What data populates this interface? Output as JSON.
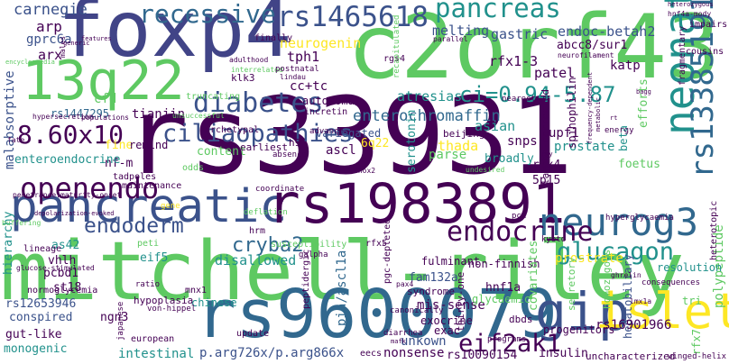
{
  "palette": {
    "dark_purple": "#440154",
    "indigo": "#3b528b",
    "teal": "#21918c",
    "green": "#5ec962",
    "yellow": "#fde725",
    "light_green": "#addc30"
  },
  "words": [
    {
      "id": "rs33931",
      "text": "rs33931",
      "color": "#440154"
    },
    {
      "id": "mitchell_riley",
      "text": "mitchell-riley",
      "color": "#5ec962"
    },
    {
      "id": "foxp4",
      "text": "foxp4",
      "color": "#414487"
    },
    {
      "id": "c2orf43",
      "text": "c2orf43",
      "color": "#5ec962"
    },
    {
      "id": "rs9600079",
      "text": "rs9600079",
      "color": "#31688e"
    },
    {
      "id": "pancreatic",
      "text": "pancreatic",
      "color": "#3b528b"
    },
    {
      "id": "rs1983891",
      "text": "rs1983891",
      "color": "#440154"
    },
    {
      "id": "q13q22",
      "text": "13q22",
      "color": "#5ec962"
    },
    {
      "id": "gip",
      "text": "gip",
      "color": "#3b528b"
    },
    {
      "id": "islets",
      "text": "islets",
      "color": "#fde725"
    },
    {
      "id": "neonatal",
      "text": "neonatal",
      "color": "#21918c"
    },
    {
      "id": "neurog3",
      "text": "neurog3",
      "color": "#31688e"
    },
    {
      "id": "diabetes",
      "text": "diabetes",
      "color": "#3b528b"
    },
    {
      "id": "rs1465618",
      "text": "rs1465618",
      "color": "#3b528b"
    },
    {
      "id": "recessive",
      "text": "recessive",
      "color": "#31688e"
    },
    {
      "id": "pancreas",
      "text": "pancreas",
      "color": "#21918c"
    },
    {
      "id": "openendo",
      "text": "openendo",
      "color": "#440154"
    },
    {
      "id": "n860x10",
      "text": "8.60x10",
      "color": "#440154"
    },
    {
      "id": "ciliaopathies",
      "text": "ciliaopathies",
      "color": "#3b528b"
    },
    {
      "id": "ci",
      "text": "ci=0.94-5.87",
      "color": "#21918c"
    },
    {
      "id": "rs13385191",
      "text": "rs13385191",
      "color": "#31688e"
    },
    {
      "id": "endoderm",
      "text": "endoderm",
      "color": "#3b528b"
    },
    {
      "id": "endocrine",
      "text": "endocrine",
      "color": "#440154"
    },
    {
      "id": "glucagon",
      "text": "glucagon",
      "color": "#21918c"
    },
    {
      "id": "cryba2",
      "text": "cryba2",
      "color": "#31688e"
    },
    {
      "id": "eif2ak1",
      "text": "eif2ak1",
      "color": "#440154"
    },
    {
      "id": "carnegie",
      "text": "carnegie",
      "color": "#3b528b"
    },
    {
      "id": "arp",
      "text": "arp",
      "color": "#440154"
    },
    {
      "id": "gprc6a",
      "text": "gprc6a",
      "color": "#3b528b"
    },
    {
      "id": "arx",
      "text": "arx",
      "color": "#440154"
    },
    {
      "id": "neurogenin",
      "text": "neurogenin",
      "color": "#fde725"
    },
    {
      "id": "tph1",
      "text": "tph1",
      "color": "#440154"
    },
    {
      "id": "melting",
      "text": "melting",
      "color": "#3b528b"
    },
    {
      "id": "gastric",
      "text": "gastric",
      "color": "#3b528b"
    },
    {
      "id": "endoc_betah2",
      "text": "endoc-betah2",
      "color": "#3b528b"
    },
    {
      "id": "abcc8",
      "text": "abcc8/sur1",
      "color": "#440154"
    },
    {
      "id": "rfx1_3",
      "text": "rfx1-3",
      "color": "#440154"
    },
    {
      "id": "patel",
      "text": "patel",
      "color": "#440154"
    },
    {
      "id": "katp",
      "text": "katp",
      "color": "#440154"
    },
    {
      "id": "cctc",
      "text": "cc+tc",
      "color": "#440154"
    },
    {
      "id": "klk3",
      "text": "klk3",
      "color": "#440154"
    },
    {
      "id": "enterochromaffin",
      "text": "enterochromaffin",
      "color": "#31688e"
    },
    {
      "id": "atresias",
      "text": "atresias",
      "color": "#21918c"
    },
    {
      "id": "tianjin",
      "text": "tianjin",
      "color": "#440154"
    },
    {
      "id": "cfd",
      "text": "cfd",
      "color": "#5ec962"
    },
    {
      "id": "rs1447295",
      "text": "rs1447295",
      "color": "#31688e"
    },
    {
      "id": "malabsorptive",
      "text": "malabsorptive",
      "color": "#3b528b"
    },
    {
      "id": "autosomal",
      "text": "autosomal",
      "color": "#440154"
    },
    {
      "id": "beijing",
      "text": "beijing",
      "color": "#440154"
    },
    {
      "id": "asian",
      "text": "asian",
      "color": "#21918c"
    },
    {
      "id": "thada",
      "text": "thada",
      "color": "#fde725"
    },
    {
      "id": "snps",
      "text": "snps",
      "color": "#440154"
    },
    {
      "id": "upf1",
      "text": "upf1",
      "color": "#440154"
    },
    {
      "id": "prostate",
      "text": "prostate",
      "color": "#21918c"
    },
    {
      "id": "spinophilin",
      "text": "spinophilin",
      "color": "#440154"
    },
    {
      "id": "serotonin",
      "text": "serotonin",
      "color": "#21918c"
    },
    {
      "id": "variegated",
      "text": "variegated",
      "color": "#3b528b"
    },
    {
      "id": "fine",
      "text": "fine",
      "color": "#fde725"
    },
    {
      "id": "remind",
      "text": "remind",
      "color": "#440154"
    },
    {
      "id": "nf_m",
      "text": "nf-m",
      "color": "#440154"
    },
    {
      "id": "content",
      "text": "content",
      "color": "#5ec962"
    },
    {
      "id": "earliest",
      "text": "earliest",
      "color": "#440154"
    },
    {
      "id": "h9",
      "text": "h9",
      "color": "#440154"
    },
    {
      "id": "ascl",
      "text": "ascl",
      "color": "#440154"
    },
    {
      "id": "q6q22",
      "text": "6q22",
      "color": "#fde725"
    },
    {
      "id": "broadly",
      "text": "broadly",
      "color": "#21918c"
    },
    {
      "id": "parse",
      "text": "parse",
      "color": "#5ec962"
    },
    {
      "id": "enteroendocrine",
      "text": "enteroendocrine",
      "color": "#21918c"
    },
    {
      "id": "rfx4",
      "text": "rfx4",
      "color": "#440154"
    },
    {
      "id": "p5p15",
      "text": "5p15",
      "color": "#440154"
    },
    {
      "id": "foetus",
      "text": "foetus",
      "color": "#5ec962"
    },
    {
      "id": "beta",
      "text": "beta",
      "color": "#21918c"
    },
    {
      "id": "efforts",
      "text": "efforts",
      "color": "#5ec962"
    },
    {
      "id": "polypeptide",
      "text": "polypeptide",
      "color": "#5ec962"
    },
    {
      "id": "hierarchy",
      "text": "hierarchy",
      "color": "#21918c"
    },
    {
      "id": "as42",
      "text": "as42",
      "color": "#21918c"
    },
    {
      "id": "vhlh",
      "text": "vhlh",
      "color": "#440154"
    },
    {
      "id": "eif5",
      "text": "eif5",
      "color": "#21918c"
    },
    {
      "id": "disallowed",
      "text": "disallowed",
      "color": "#21918c"
    },
    {
      "id": "fulminant",
      "text": "fulminant",
      "color": "#440154"
    },
    {
      "id": "non_finnish",
      "text": "non-finnish",
      "color": "#440154"
    },
    {
      "id": "prostrate",
      "text": "prostrate",
      "color": "#fde725"
    },
    {
      "id": "resolution",
      "text": "resolution",
      "color": "#21918c"
    },
    {
      "id": "st18",
      "text": "st18",
      "color": "#440154"
    },
    {
      "id": "pia_ascl1a",
      "text": "pia/ascl1a",
      "color": "#31688e"
    },
    {
      "id": "fam132a",
      "text": "fam132a",
      "color": "#3b528b"
    },
    {
      "id": "hnf1a",
      "text": "hnf1a",
      "color": "#440154"
    },
    {
      "id": "covariates",
      "text": "covariates",
      "color": "#5ec962"
    },
    {
      "id": "hepatobiliary",
      "text": "hepatobiliary",
      "color": "#3b528b"
    },
    {
      "id": "rs12653946",
      "text": "rs12653946",
      "color": "#3b528b"
    },
    {
      "id": "hypoplasia",
      "text": "hypoplasia",
      "color": "#440154"
    },
    {
      "id": "chinese",
      "text": "chinese",
      "color": "#21918c"
    },
    {
      "id": "mis_sense",
      "text": "mis-sense",
      "color": "#440154"
    },
    {
      "id": "exocrine",
      "text": "exocrine",
      "color": "#440154"
    },
    {
      "id": "syndrome",
      "text": "syndrome",
      "color": "#440154"
    },
    {
      "id": "glycaemic",
      "text": "glycaemic",
      "color": "#5ec962"
    },
    {
      "id": "conspired",
      "text": "conspired",
      "color": "#3b528b"
    },
    {
      "id": "gut_like",
      "text": "gut-like",
      "color": "#440154"
    },
    {
      "id": "monogenic",
      "text": "monogenic",
      "color": "#21918c"
    },
    {
      "id": "ngn3",
      "text": "ngn3",
      "color": "#440154"
    },
    {
      "id": "exac",
      "text": "exac",
      "color": "#440154"
    },
    {
      "id": "unkown",
      "text": "unkown",
      "color": "#3b528b"
    },
    {
      "id": "progenitors",
      "text": "progenitors",
      "color": "#440154"
    },
    {
      "id": "rs16901966",
      "text": "rs16901966",
      "color": "#440154"
    },
    {
      "id": "intestinal",
      "text": "intestinal",
      "color": "#21918c"
    },
    {
      "id": "parg726x",
      "text": "p.arg726x/p.arg866x",
      "color": "#3b528b"
    },
    {
      "id": "nonsense",
      "text": "nonsense",
      "color": "#440154"
    },
    {
      "id": "rs10090154",
      "text": "rs10090154",
      "color": "#440154"
    },
    {
      "id": "insulin",
      "text": "insulin",
      "color": "#440154"
    },
    {
      "id": "uncharacterized",
      "text": "uncharacterized",
      "color": "#440154"
    },
    {
      "id": "tri",
      "text": "tri",
      "color": "#5ec962"
    },
    {
      "id": "pcbd1",
      "text": "pcbd1",
      "color": "#440154"
    },
    {
      "id": "dbds",
      "text": "dbds",
      "color": "#440154"
    },
    {
      "id": "normoglycemia",
      "text": "normoglycemia",
      "color": "#440154"
    },
    {
      "id": "lambda_corrected",
      "text": "lambda-corrected",
      "color": "#440154"
    },
    {
      "id": "thirty_one",
      "text": "thirty-one",
      "color": "#440154"
    },
    {
      "id": "rfx7",
      "text": "rfx7",
      "color": "#5ec962"
    },
    {
      "id": "secretory",
      "text": "secretory",
      "color": "#5ec962"
    },
    {
      "id": "homozygous",
      "text": "homozygous",
      "color": "#5ec962"
    },
    {
      "id": "finally",
      "text": "finally",
      "color": "#440154"
    },
    {
      "id": "rgs4",
      "text": "rgs4",
      "color": "#440154"
    },
    {
      "id": "eecs",
      "text": "eecs",
      "color": "#440154"
    },
    {
      "id": "european",
      "text": "european",
      "color": "#440154"
    },
    {
      "id": "update",
      "text": "update",
      "color": "#440154"
    },
    {
      "id": "fragmentary",
      "text": "fragmentary",
      "color": "#440154"
    },
    {
      "id": "cousins",
      "text": "cousins",
      "color": "#440154"
    },
    {
      "id": "impairs",
      "text": "impairs",
      "color": "#440154"
    },
    {
      "id": "gene",
      "text": "gene",
      "color": "#fde725"
    },
    {
      "id": "deflation",
      "text": "deflation",
      "color": "#5ec962"
    },
    {
      "id": "susceptibility",
      "text": "susceptibility",
      "color": "#5ec962"
    },
    {
      "id": "archetypal",
      "text": "archetypal",
      "color": "#440154"
    },
    {
      "id": "incretin",
      "text": "incretin",
      "color": "#440154"
    },
    {
      "id": "penetrance",
      "text": "penetrance.maturity-onset",
      "color": "#440154"
    },
    {
      "id": "maintenance",
      "text": "maintenance",
      "color": "#440154"
    },
    {
      "id": "tadpoles",
      "text": "tadpoles",
      "color": "#440154"
    },
    {
      "id": "odds",
      "text": "odds",
      "color": "#5ec962"
    },
    {
      "id": "mnx1",
      "text": "mnx1",
      "color": "#440154"
    },
    {
      "id": "peptidergic",
      "text": "peptidergic",
      "color": "#440154"
    },
    {
      "id": "canonically",
      "text": "canonically",
      "color": "#440154"
    },
    {
      "id": "programs",
      "text": "programs",
      "color": "#440154"
    },
    {
      "id": "consequences",
      "text": "consequences",
      "color": "#440154"
    },
    {
      "id": "winged_helix",
      "text": "winged-helix",
      "color": "#440154"
    },
    {
      "id": "diarrhea",
      "text": "diarrhea",
      "color": "#440154"
    },
    {
      "id": "hyperglycaemia",
      "text": "hyperglycaemia",
      "color": "#440154"
    },
    {
      "id": "heterotopic",
      "text": "heterotopic",
      "color": "#440154"
    },
    {
      "id": "ghrelin",
      "text": "ghrelin",
      "color": "#440154"
    },
    {
      "id": "galpha",
      "text": "galpha",
      "color": "#440154"
    },
    {
      "id": "kyoto",
      "text": "kyoto",
      "color": "#440154"
    },
    {
      "id": "rfx5",
      "text": "rfx5",
      "color": "#440154"
    },
    {
      "id": "pgc_depleted",
      "text": "pgc-depleted",
      "color": "#440154"
    },
    {
      "id": "pax4",
      "text": "pax4",
      "color": "#440154"
    },
    {
      "id": "lmx1a",
      "text": "lmx1a",
      "color": "#440154"
    },
    {
      "id": "ratio",
      "text": "ratio",
      "color": "#440154"
    },
    {
      "id": "japanese",
      "text": "japanese",
      "color": "#440154"
    },
    {
      "id": "von_hippel",
      "text": "von-hippel",
      "color": "#440154"
    },
    {
      "id": "glucose_stimulated",
      "text": "glucose-stimulated",
      "color": "#440154"
    },
    {
      "id": "lineage",
      "text": "lineage",
      "color": "#440154"
    },
    {
      "id": "peti",
      "text": "peti",
      "color": "#5ec962"
    },
    {
      "id": "hrm",
      "text": "hrm",
      "color": "#440154"
    },
    {
      "id": "pca",
      "text": "pca",
      "color": "#440154"
    },
    {
      "id": "nearest",
      "text": "nearest",
      "color": "#440154"
    },
    {
      "id": "undesired",
      "text": "undesired",
      "color": "#5ec962"
    },
    {
      "id": "coordinate",
      "text": "coordinate",
      "color": "#440154"
    },
    {
      "id": "shox2",
      "text": "shox2",
      "color": "#440154"
    },
    {
      "id": "absence",
      "text": "absence",
      "color": "#440154"
    },
    {
      "id": "advance",
      "text": "advance",
      "color": "#440154"
    },
    {
      "id": "fate",
      "text": "fate",
      "color": "#440154"
    },
    {
      "id": "hypersecretion",
      "text": "hypersecretion",
      "color": "#440154"
    },
    {
      "id": "populations",
      "text": "populations",
      "color": "#440154"
    },
    {
      "id": "unsuccessful",
      "text": "unsuccessful",
      "color": "#5ec962"
    },
    {
      "id": "truncating",
      "text": "truncating",
      "color": "#5ec962"
    },
    {
      "id": "interrelated",
      "text": "interrelated",
      "color": "#5ec962"
    },
    {
      "id": "adulthood",
      "text": "adulthood",
      "color": "#440154"
    },
    {
      "id": "postnatal",
      "text": "postnatal",
      "color": "#440154"
    },
    {
      "id": "lindau",
      "text": "lindau",
      "color": "#440154"
    },
    {
      "id": "parallel",
      "text": "parallel",
      "color": "#440154"
    },
    {
      "id": "recapitulated",
      "text": "recapitulated",
      "color": "#5ec962"
    },
    {
      "id": "neurofilament",
      "text": "neurofilament",
      "color": "#440154"
    },
    {
      "id": "hnf4a_mody",
      "text": "hnf4a-mody",
      "color": "#440154"
    },
    {
      "id": "heterozygous",
      "text": "heterozygous",
      "color": "#440154"
    },
    {
      "id": "males",
      "text": "males",
      "color": "#440154"
    },
    {
      "id": "generic",
      "text": "generic",
      "color": "#440154"
    },
    {
      "id": "features",
      "text": "features",
      "color": "#440154"
    },
    {
      "id": "encyclopaedia",
      "text": "encyclopaedia",
      "color": "#5ec962"
    },
    {
      "id": "depolarization",
      "text": "depolarization-evoked",
      "color": "#440154"
    },
    {
      "id": "buffering",
      "text": "buffering",
      "color": "#5ec962"
    },
    {
      "id": "energy",
      "text": "energy",
      "color": "#440154"
    },
    {
      "id": "rt",
      "text": "rt",
      "color": "#440154"
    },
    {
      "id": "roy",
      "text": "roy",
      "color": "#440154"
    },
    {
      "id": "bagg",
      "text": "bagg",
      "color": "#440154"
    },
    {
      "id": "metabolic",
      "text": "metabolic",
      "color": "#440154"
    },
    {
      "id": "frequency",
      "text": "frequency-dependent",
      "color": "#440154"
    },
    {
      "id": "nrfk",
      "text": "mafk",
      "color": "#440154"
    }
  ]
}
